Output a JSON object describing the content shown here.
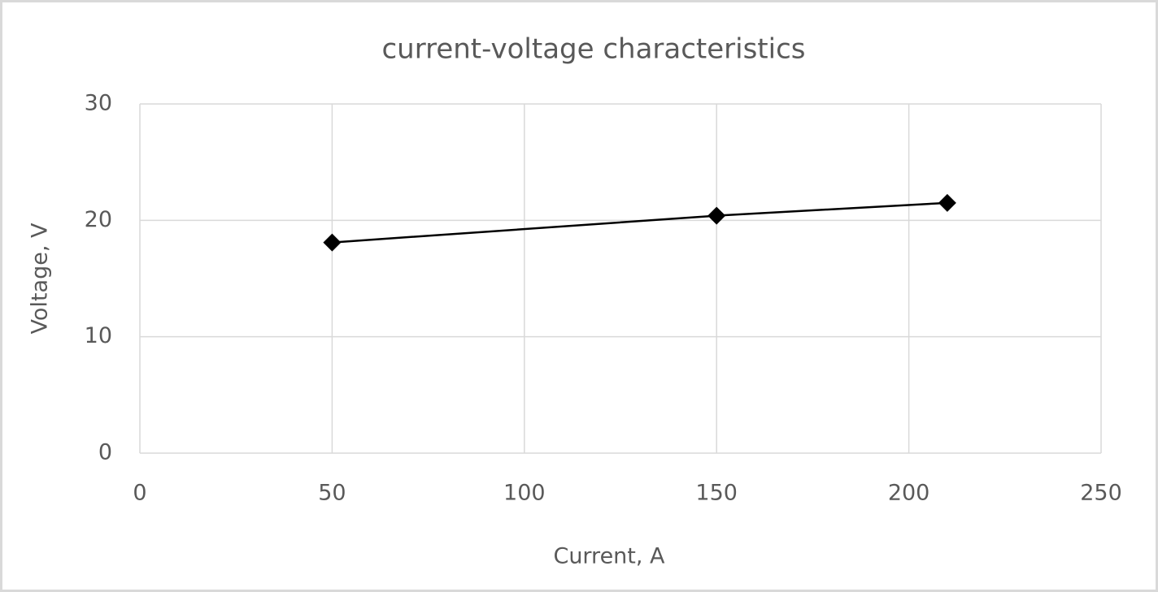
{
  "chart_data": {
    "type": "line",
    "title": "current-voltage characteristics",
    "x_label": "Current, A",
    "y_label": "Voltage, V",
    "x": [
      50,
      150,
      210
    ],
    "values": [
      18.1,
      20.4,
      21.5
    ],
    "color": "#000000",
    "marker": "diamond",
    "xlim": [
      0,
      250
    ],
    "xticks": [
      0,
      50,
      100,
      150,
      200,
      250
    ],
    "ylim": [
      0,
      30
    ],
    "yticks": [
      0,
      10,
      20,
      30
    ],
    "grid": true
  }
}
